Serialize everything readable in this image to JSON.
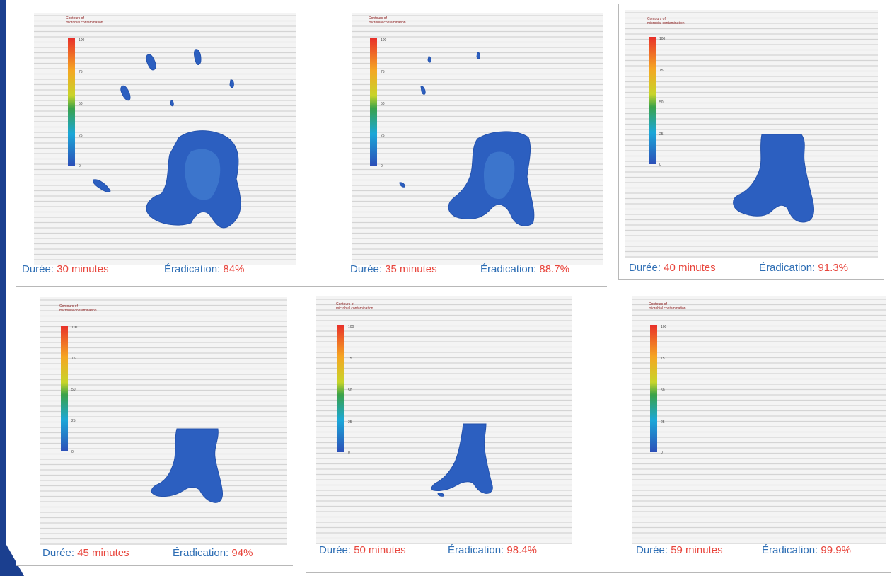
{
  "colors": {
    "caption_label": "#2f6fb5",
    "caption_value": "#e8453c",
    "contamination_fill": "#2c5fc0",
    "stripe": "#d4d4d4",
    "plot_bg": "#f4f4f4",
    "side_bar": "#1b3f8f"
  },
  "chart_data": [
    {
      "type": "heatmap",
      "legend_title": [
        "Contours of",
        "microbial contamination"
      ],
      "legend_ticks": [
        "100",
        "75",
        "50",
        "25",
        "0"
      ],
      "duration_label": "Durée:",
      "duration": "30 minutes",
      "eradication_label": "Éradication:",
      "eradication": "84%",
      "eradication_pct": 84.0
    },
    {
      "type": "heatmap",
      "legend_title": [
        "Contours of",
        "microbial contamination"
      ],
      "legend_ticks": [
        "100",
        "75",
        "50",
        "25",
        "0"
      ],
      "duration_label": "Durée:",
      "duration": "35 minutes",
      "eradication_label": "Éradication:",
      "eradication": "88.7%",
      "eradication_pct": 88.7
    },
    {
      "type": "heatmap",
      "legend_title": [
        "Contours of",
        "microbial contamination"
      ],
      "legend_ticks": [
        "100",
        "75",
        "50",
        "25",
        "0"
      ],
      "duration_label": "Durée:",
      "duration": "40 minutes",
      "eradication_label": "Éradication:",
      "eradication": "91.3%",
      "eradication_pct": 91.3
    },
    {
      "type": "heatmap",
      "legend_title": [
        "Contours of",
        "microbial contamination"
      ],
      "legend_ticks": [
        "100",
        "75",
        "50",
        "25",
        "0"
      ],
      "duration_label": "Durée:",
      "duration": "45 minutes",
      "eradication_label": "Éradication:",
      "eradication": "94%",
      "eradication_pct": 94.0
    },
    {
      "type": "heatmap",
      "legend_title": [
        "Contours of",
        "microbial contamination"
      ],
      "legend_ticks": [
        "100",
        "75",
        "50",
        "25",
        "0"
      ],
      "duration_label": "Durée:",
      "duration": "50 minutes",
      "eradication_label": "Éradication:",
      "eradication": "98.4%",
      "eradication_pct": 98.4
    },
    {
      "type": "heatmap",
      "legend_title": [
        "Contours of",
        "microbial contamination"
      ],
      "legend_ticks": [
        "100",
        "75",
        "50",
        "25",
        "0"
      ],
      "duration_label": "Durée:",
      "duration": "59 minutes",
      "eradication_label": "Éradication:",
      "eradication": "99.9%",
      "eradication_pct": 99.9
    }
  ]
}
